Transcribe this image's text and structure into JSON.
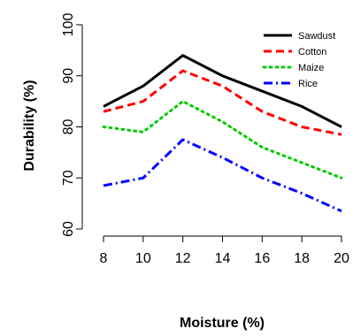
{
  "chart_data": {
    "type": "line",
    "title": "",
    "xlabel": "Moisture (%)",
    "ylabel": "Durability (%)",
    "x": [
      8,
      10,
      12,
      14,
      16,
      18,
      20
    ],
    "xticks": [
      "8",
      "10",
      "12",
      "14",
      "16",
      "18",
      "20"
    ],
    "yticks": [
      "60",
      "70",
      "80",
      "90",
      "100"
    ],
    "xlim": [
      8,
      20
    ],
    "ylim": [
      60,
      100
    ],
    "grid": false,
    "legend_position": "top-right",
    "series": [
      {
        "name": "Sawdust",
        "color": "#000000",
        "dash": "solid",
        "values": [
          84,
          88,
          94,
          90,
          87,
          84,
          80
        ]
      },
      {
        "name": "Cotton",
        "color": "#ff0000",
        "dash": "dashed",
        "values": [
          83,
          85,
          91,
          88,
          83,
          80,
          78.5
        ]
      },
      {
        "name": "Maize",
        "color": "#00cc00",
        "dash": "dotted",
        "values": [
          80,
          79,
          85,
          81,
          76,
          73,
          70
        ]
      },
      {
        "name": "Rice",
        "color": "#0000ff",
        "dash": "dashdot",
        "values": [
          68.5,
          70,
          77.5,
          74,
          70,
          67,
          63.5
        ]
      }
    ]
  }
}
